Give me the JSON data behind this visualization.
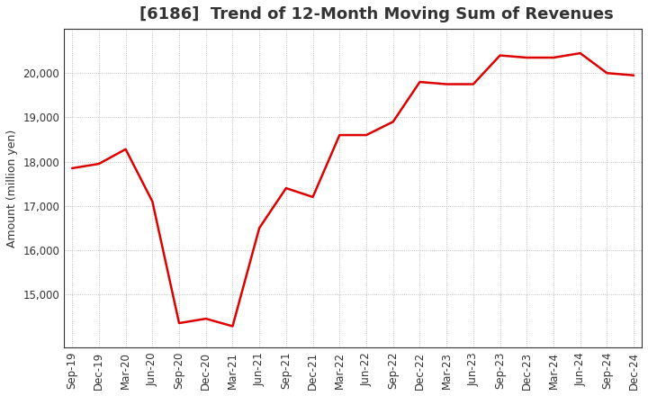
{
  "title": "[6186]  Trend of 12-Month Moving Sum of Revenues",
  "ylabel": "Amount (million yen)",
  "line_color": "#dd0000",
  "background_color": "#ffffff",
  "plot_background": "#ffffff",
  "grid_color": "#999999",
  "labels": [
    "Sep-19",
    "Dec-19",
    "Mar-20",
    "Jun-20",
    "Sep-20",
    "Dec-20",
    "Mar-21",
    "Jun-21",
    "Sep-21",
    "Dec-21",
    "Mar-22",
    "Jun-22",
    "Sep-22",
    "Dec-22",
    "Mar-23",
    "Jun-23",
    "Sep-23",
    "Dec-23",
    "Mar-24",
    "Jun-24",
    "Sep-24",
    "Dec-24"
  ],
  "values": [
    17850,
    17950,
    18280,
    17100,
    14350,
    14450,
    14280,
    16500,
    17400,
    17200,
    18600,
    18600,
    18900,
    19800,
    19750,
    19750,
    20400,
    20350,
    20350,
    20450,
    20000,
    19950
  ],
  "ylim_min": 13800,
  "ylim_max": 21000,
  "yticks": [
    15000,
    16000,
    17000,
    18000,
    19000,
    20000
  ],
  "title_fontsize": 13,
  "label_fontsize": 9,
  "tick_fontsize": 8.5,
  "title_color": "#333333",
  "line_width": 1.8
}
